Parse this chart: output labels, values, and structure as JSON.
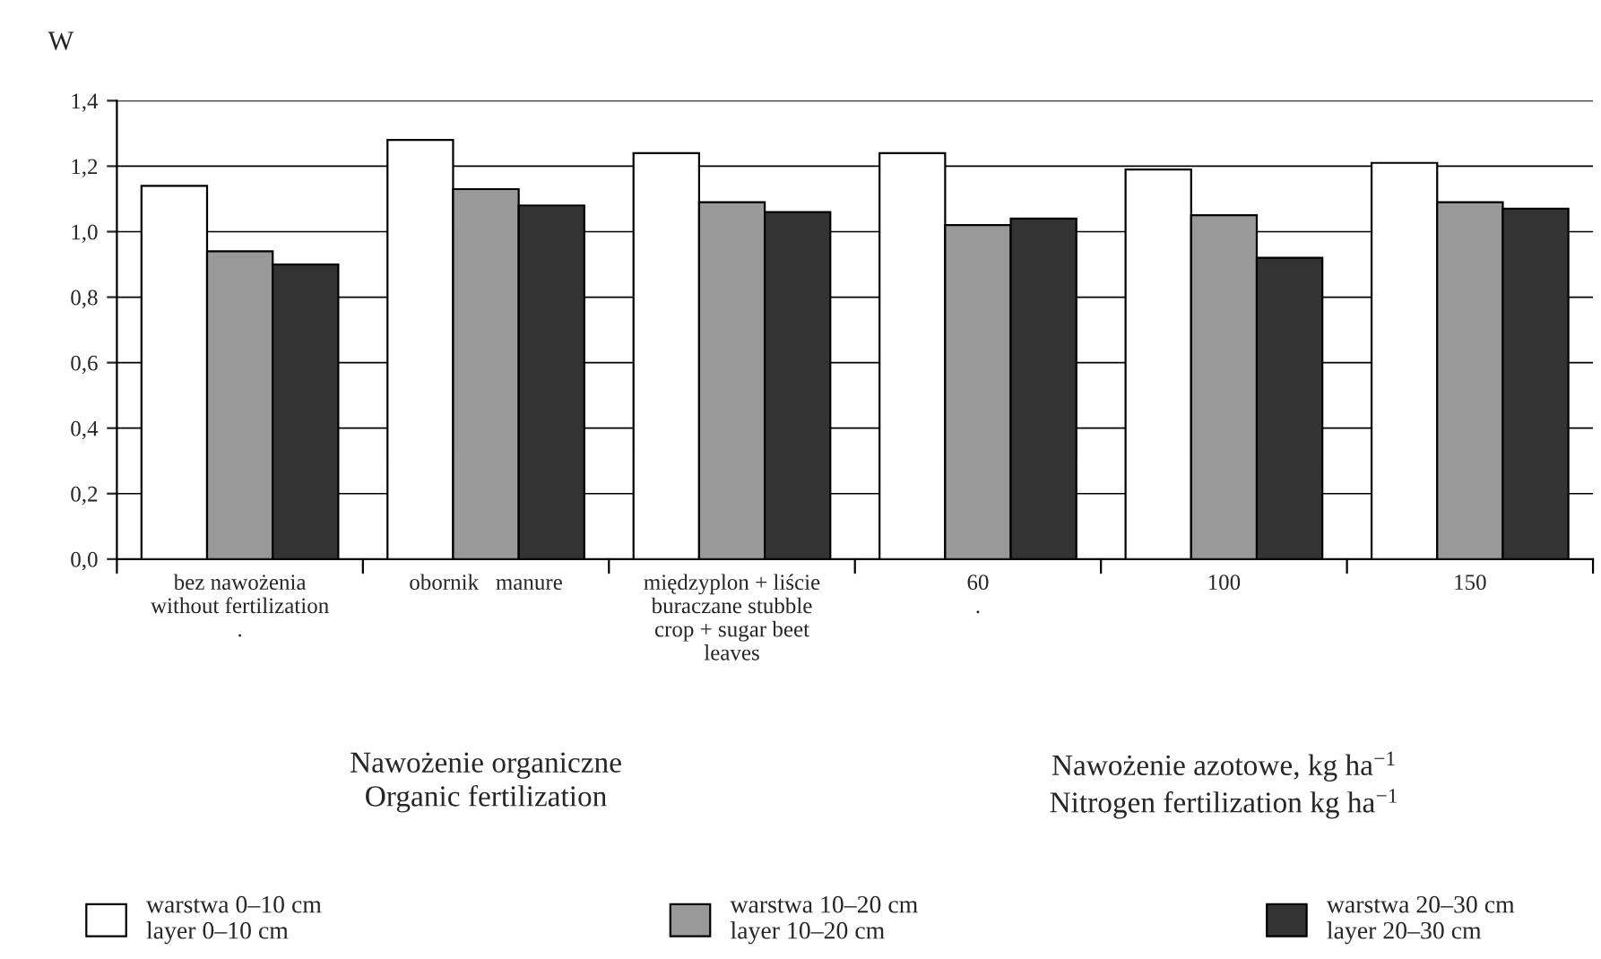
{
  "chart_data": {
    "type": "bar",
    "ylabel": "W",
    "categories": [
      "bez nawożenia\nwithout fertilization\n.",
      "obornik   manure",
      "międzyplon + liście\nburaczane stubble\ncrop + sugar beet\nleaves",
      "60\n.",
      "100",
      "150"
    ],
    "series": [
      {
        "name": "warstwa 0–10 cm\nlayer 0–10 cm",
        "color": "#ffffff",
        "values": [
          1.14,
          1.28,
          1.24,
          1.24,
          1.19,
          1.21
        ]
      },
      {
        "name": "warstwa 10–20 cm\nlayer 10–20 cm",
        "color": "#999999",
        "values": [
          0.94,
          1.13,
          1.09,
          1.02,
          1.05,
          1.09
        ]
      },
      {
        "name": "warstwa 20–30 cm\nlayer 20–30 cm",
        "color": "#333333",
        "values": [
          0.9,
          1.08,
          1.06,
          1.04,
          0.92,
          1.07
        ]
      }
    ],
    "ylim": [
      0,
      1.4
    ],
    "yticks": [
      {
        "value": 0,
        "label": "0,0"
      },
      {
        "value": 0.2,
        "label": "0,2"
      },
      {
        "value": 0.4,
        "label": "0,4"
      },
      {
        "value": 0.6,
        "label": "0,6"
      },
      {
        "value": 0.8,
        "label": "0,8"
      },
      {
        "value": 1.0,
        "label": "1,0"
      },
      {
        "value": 1.2,
        "label": "1,2"
      },
      {
        "value": 1.4,
        "label": "1,4"
      }
    ],
    "grid": "y",
    "legend": "bottom",
    "annotations": [
      "Nawożenie organiczne\nOrganic fertilization",
      "Nawożenie azotowe, kg ha$^{−1}$\nNitrogen fertilization kg ha$^{−1}$"
    ]
  }
}
